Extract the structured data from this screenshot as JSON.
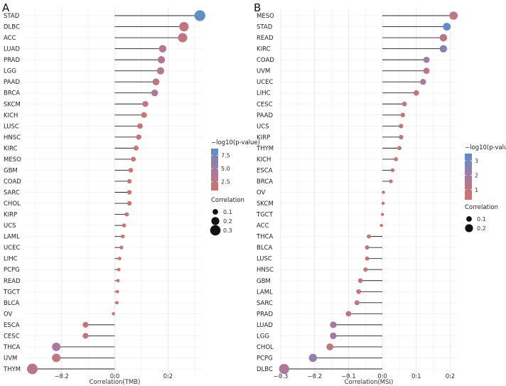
{
  "chart_data": [
    {
      "panel": "A",
      "type": "scatter",
      "subtype": "lollipop",
      "xlabel": "Correlation(TMB)",
      "xlim": [
        -0.33,
        0.33
      ],
      "xticks": [
        -0.2,
        0.0,
        0.2
      ],
      "xtick_labels": [
        "−0.2",
        "0.0",
        "0.2"
      ],
      "categories": [
        "STAD",
        "DLBC",
        "ACC",
        "LUAD",
        "PRAD",
        "LGG",
        "PAAD",
        "BRCA",
        "SKCM",
        "KICH",
        "LUSC",
        "HNSC",
        "KIRC",
        "MESO",
        "GBM",
        "COAD",
        "SARC",
        "CHOL",
        "KIRP",
        "UCS",
        "LAML",
        "UCEC",
        "LIHC",
        "PCPG",
        "READ",
        "TGCT",
        "BLCA",
        "OV",
        "ESCA",
        "CESC",
        "THCA",
        "UVM",
        "THYM"
      ],
      "values": [
        0.32,
        0.26,
        0.255,
        0.18,
        0.175,
        0.172,
        0.155,
        0.15,
        0.115,
        0.11,
        0.095,
        0.09,
        0.08,
        0.07,
        0.06,
        0.055,
        0.055,
        0.055,
        0.045,
        0.035,
        0.03,
        0.025,
        0.018,
        0.015,
        0.012,
        0.01,
        0.008,
        -0.005,
        -0.11,
        -0.11,
        -0.22,
        -0.22,
        -0.31
      ],
      "neglog10p": [
        8.5,
        2.6,
        2.5,
        3.8,
        3.6,
        3.4,
        2.4,
        4.2,
        2.1,
        1.8,
        1.9,
        1.9,
        1.7,
        1.6,
        1.6,
        1.6,
        1.5,
        1.5,
        1.4,
        1.4,
        1.3,
        1.3,
        1.2,
        1.2,
        1.2,
        1.1,
        1.1,
        1.0,
        1.9,
        1.9,
        4.3,
        2.3,
        3.1
      ],
      "color_legend": {
        "title": "−log10(p-value)",
        "ticks": [
          2.5,
          5.0,
          7.5
        ],
        "tick_labels": [
          "2.5",
          "5.0",
          "7.5"
        ],
        "range": [
          0.8,
          8.8
        ],
        "colors": [
          "#d0736a",
          "#a67aa0",
          "#5b8fc6"
        ]
      },
      "size_legend": {
        "title": "Correlation",
        "values": [
          0.1,
          0.2,
          0.3
        ],
        "labels": [
          "0.1",
          "0.2",
          "0.3"
        ]
      },
      "grid": true
    },
    {
      "panel": "B",
      "type": "scatter",
      "subtype": "lollipop",
      "xlabel": "Correlation(MSI)",
      "xlim": [
        -0.3,
        0.22
      ],
      "xticks": [
        -0.3,
        -0.2,
        -0.1,
        0.0,
        0.1,
        0.2
      ],
      "xtick_labels": [
        "−0.3",
        "−0.2",
        "−0.1",
        "0.0",
        "0.1",
        "0.2"
      ],
      "categories": [
        "MESO",
        "STAD",
        "READ",
        "KIRC",
        "COAD",
        "UVM",
        "UCEC",
        "LIHC",
        "CESC",
        "PAAD",
        "UCS",
        "KIRP",
        "THYM",
        "KICH",
        "ESCA",
        "BRCA",
        "OV",
        "SKCM",
        "TGCT",
        "ACC",
        "THCA",
        "BLCA",
        "LUSC",
        "HNSC",
        "GBM",
        "LAML",
        "SARC",
        "PRAD",
        "LUAD",
        "LGG",
        "CHOL",
        "PCPG",
        "DLBC"
      ],
      "values": [
        0.21,
        0.19,
        0.18,
        0.18,
        0.13,
        0.13,
        0.12,
        0.1,
        0.065,
        0.06,
        0.055,
        0.055,
        0.05,
        0.04,
        0.03,
        0.025,
        0.003,
        0.002,
        0.0,
        -0.003,
        -0.04,
        -0.045,
        -0.045,
        -0.05,
        -0.065,
        -0.07,
        -0.075,
        -0.1,
        -0.145,
        -0.145,
        -0.155,
        -0.205,
        -0.29
      ],
      "neglog10p": [
        1.1,
        3.4,
        1.2,
        2.6,
        2.0,
        0.9,
        1.8,
        1.0,
        0.8,
        0.8,
        0.7,
        0.8,
        0.7,
        0.6,
        0.6,
        0.6,
        0.3,
        0.3,
        0.3,
        0.3,
        0.6,
        0.7,
        0.7,
        0.7,
        0.8,
        0.8,
        0.9,
        1.3,
        2.0,
        2.0,
        0.9,
        2.3,
        1.6
      ],
      "color_legend": {
        "title": "−log10(p-value)",
        "ticks": [
          1,
          2,
          3
        ],
        "tick_labels": [
          "1",
          "2",
          "3"
        ],
        "range": [
          0.3,
          3.5
        ],
        "colors": [
          "#d0736a",
          "#a67aa0",
          "#5b8fc6"
        ]
      },
      "size_legend": {
        "title": "Correlation",
        "values": [
          0.1,
          0.2
        ],
        "labels": [
          "0.1",
          "0.2"
        ]
      },
      "grid": true
    }
  ]
}
